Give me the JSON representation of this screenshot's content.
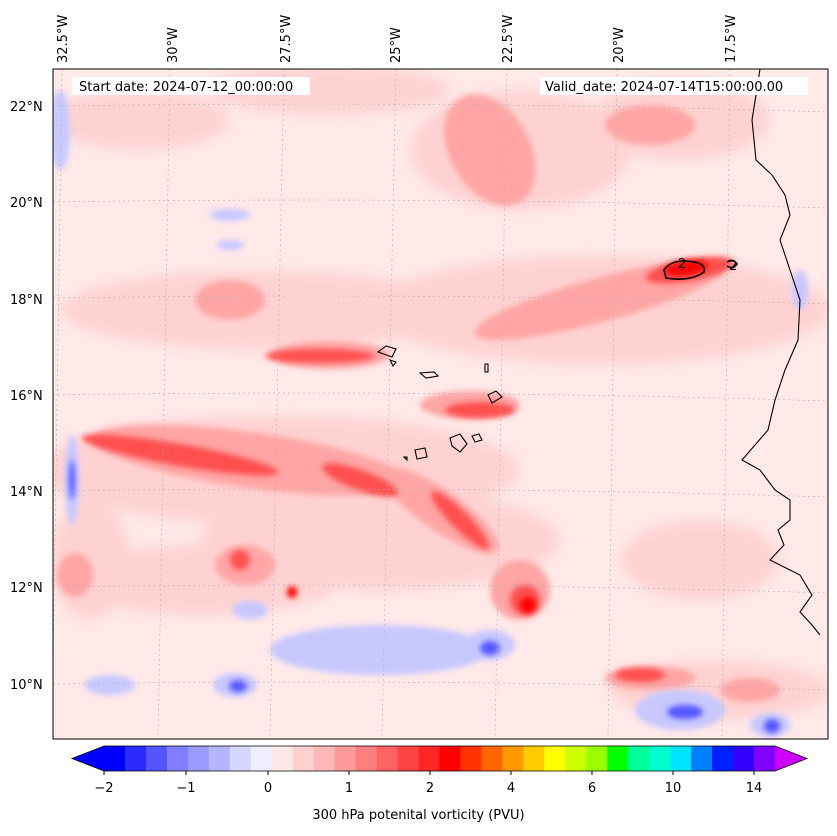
{
  "map": {
    "start_label": "Start date: 2024-07-12_00:00:00",
    "valid_label": "Valid_date: 2024-07-14T15:00:00.00",
    "lon_ticks": [
      "32.5°W",
      "30°W",
      "27.5°W",
      "25°W",
      "22.5°W",
      "20°W",
      "17.5°W"
    ],
    "lat_ticks": [
      "22°N",
      "20°N",
      "18°N",
      "16°N",
      "14°N",
      "12°N",
      "10°N"
    ],
    "contour_labels": [
      "2",
      "2"
    ]
  },
  "colorbar": {
    "tick_labels": [
      "−2",
      "−1",
      "0",
      "1",
      "2",
      "4",
      "6",
      "10",
      "14"
    ],
    "caption": "300 hPa potenital vorticity (PVU)",
    "colors": [
      "#0000ff",
      "#2a2aff",
      "#5555ff",
      "#7f7fff",
      "#9a9aff",
      "#b4b4ff",
      "#d6d6ff",
      "#eeeeff",
      "#ffe8e8",
      "#ffd0d0",
      "#ffb8b8",
      "#ff9a9a",
      "#ff7f7f",
      "#ff6262",
      "#ff4444",
      "#ff2626",
      "#ff0000",
      "#ff3200",
      "#ff6600",
      "#ff9900",
      "#ffcc00",
      "#ffff00",
      "#ccff00",
      "#99ff00",
      "#00ff00",
      "#00ff99",
      "#00ffcc",
      "#00e5ff",
      "#0080ff",
      "#0020ff",
      "#3300ff",
      "#8000ff"
    ],
    "extend_min_color": "#0000ff",
    "extend_max_color": "#cc00ff"
  }
}
